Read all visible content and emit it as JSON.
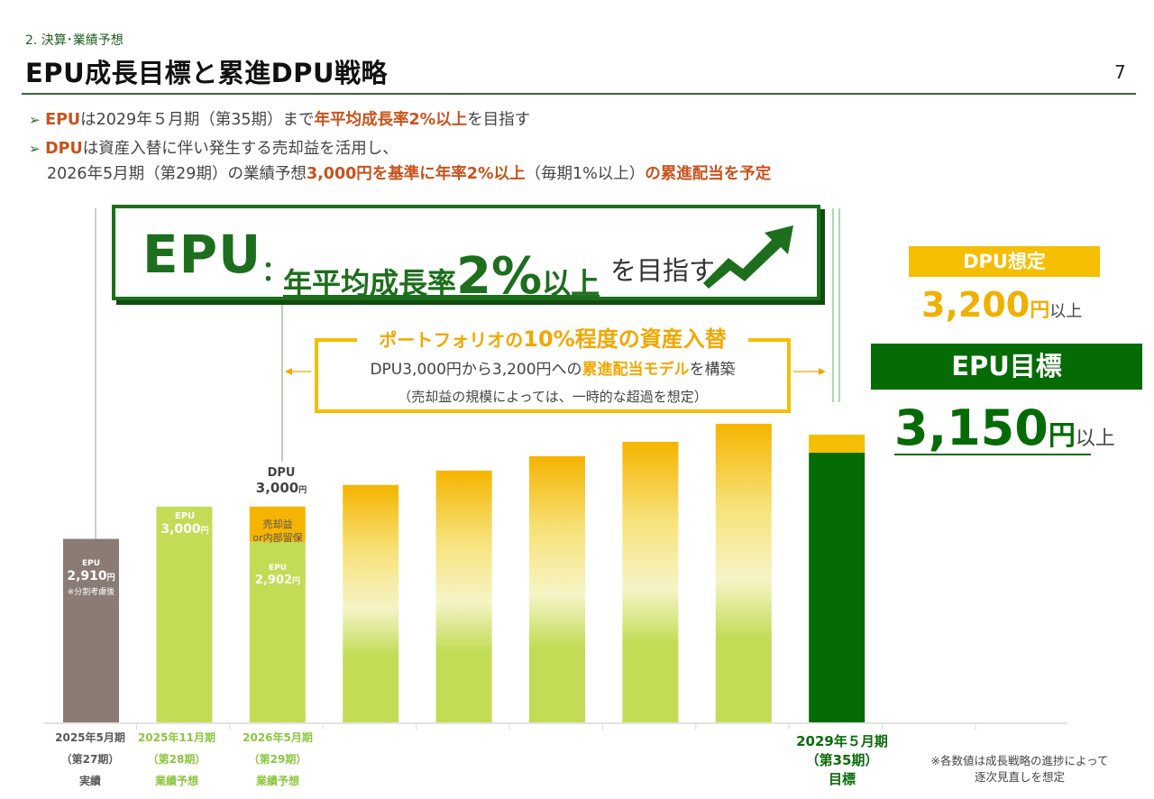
{
  "header": {
    "section": "2. 決算･業績予想",
    "title": "EPU成長目標と累進DPU戦略",
    "page_number": "7"
  },
  "bullets": {
    "marker": "➢",
    "b1": {
      "pre": "EPU",
      "mid": "は2029年５月期（第35期）まで",
      "hl": "年平均成長率2%以上",
      "post": "を目指す"
    },
    "b2": {
      "pre": "DPU",
      "mid": "は資産入替に伴い発生する売却益を活用し、"
    },
    "b2_cont": {
      "pre": "2026年5月期（第29期）の業績予想",
      "hl": "3,000円を基準に年率2%以上",
      "mid": "（毎期1%以上）",
      "post": "の累進配当を予定"
    }
  },
  "goal_box": {
    "epu": "EPU",
    "colon": "：",
    "rate_pre": "年平均成長率",
    "rate_num": "2%",
    "rate_post": "以上",
    "suffix": "を目指す"
  },
  "asset_box": {
    "title_pre": "ポートフォリオの",
    "title_num": "10%",
    "title_post": "程度の資産入替",
    "line1_pre": "DPU3,000円から3,200円への",
    "line1_em": "累進配当モデル",
    "line1_post": "を構築",
    "line2": "（売却益の規模によっては、一時的な超過を想定）"
  },
  "dpu_assumption": {
    "label": "DPU想定",
    "value": "3,200",
    "yen": "円",
    "suffix": "以上"
  },
  "epu_target": {
    "label": "EPU目標",
    "value": "3,150",
    "yen": "円",
    "suffix": "以上"
  },
  "footnote": {
    "line1": "※各数値は成長戦略の進捗によって",
    "line2": "逐次見直しを想定"
  },
  "colors": {
    "actual": "#8b7b75",
    "forecast": "#c2dc56",
    "dpu_gain": "#f5b400",
    "target": "#056b05",
    "highlight": "#c9521b",
    "accent": "#f5be00"
  },
  "chart_data": {
    "type": "bar",
    "categories": [
      "2025年5月期",
      "2025年11月期",
      "2026年5月期",
      "",
      "",
      "",
      "",
      "",
      "2029年５月期"
    ],
    "bars": [
      {
        "kind": "actual",
        "epu": 2910,
        "label": {
          "title": "EPU",
          "value": "2,910",
          "yen": "円",
          "note": "※分割考慮後"
        },
        "x1": "2025年5月期",
        "x2": "（第27期）",
        "x3": "実績"
      },
      {
        "kind": "forecast",
        "epu": 3000,
        "label": {
          "title": "EPU",
          "value": "3,000",
          "yen": "円"
        },
        "x1": "2025年11月期",
        "x2": "（第28期）",
        "x3": "業績予想"
      },
      {
        "kind": "forecast_dpu",
        "epu": 2902,
        "dpu": 3000,
        "label": {
          "title": "EPU",
          "value": "2,902",
          "yen": "円"
        },
        "dpu_label": {
          "title": "DPU",
          "value": "3,000",
          "yen": "円"
        },
        "gain_label": {
          "l1": "売却益",
          "l2": "or内部留保"
        },
        "x1": "2026年5月期",
        "x2": "（第29期）",
        "x3": "業績予想"
      },
      {
        "kind": "gradient",
        "total": 3060
      },
      {
        "kind": "gradient",
        "total": 3100
      },
      {
        "kind": "gradient",
        "total": 3140
      },
      {
        "kind": "gradient",
        "total": 3180
      },
      {
        "kind": "gradient",
        "total": 3230
      },
      {
        "kind": "target",
        "epu": 3150,
        "dpu": 3200,
        "x1": "2029年５月期",
        "x2": "（第35期）",
        "x3": "目標"
      }
    ],
    "ylim": [
      2400,
      3290
    ]
  }
}
